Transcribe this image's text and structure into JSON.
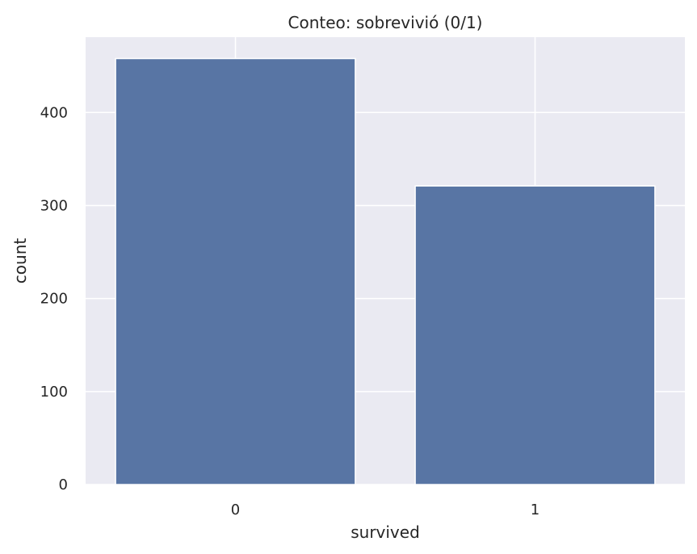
{
  "chart_data": {
    "type": "bar",
    "title": "Conteo: sobrevivió (0/1)",
    "xlabel": "survived",
    "ylabel": "count",
    "categories": [
      "0",
      "1"
    ],
    "values": [
      458,
      321
    ],
    "ylim": [
      0,
      481
    ],
    "yticks": [
      0,
      100,
      200,
      300,
      400
    ],
    "grid": true,
    "legend": "none"
  },
  "colors": {
    "bar": "#5875a4",
    "plot_background": "#eaeaf2",
    "grid": "#ffffff",
    "text": "#262626",
    "page_background": "#ffffff"
  }
}
